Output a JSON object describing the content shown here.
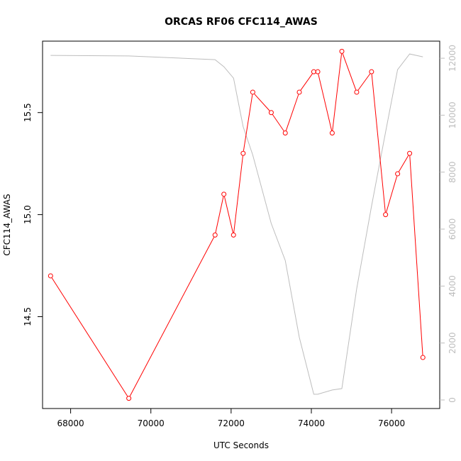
{
  "chart_data": {
    "type": "line",
    "title": "ORCAS RF06 CFC114_AWAS",
    "xlabel": "UTC Seconds",
    "ylabel": "CFC114_AWAS",
    "xlim": [
      67300,
      77200
    ],
    "ylim": [
      14.05,
      15.85
    ],
    "y2lim": [
      -300,
      12600
    ],
    "x_ticks": [
      68000,
      70000,
      72000,
      74000,
      76000
    ],
    "y_ticks": [
      14.5,
      15.0,
      15.5
    ],
    "y2_ticks": [
      0,
      2000,
      4000,
      6000,
      8000,
      10000,
      12000
    ],
    "grid": false,
    "legend": "none",
    "series": [
      {
        "axis": "left",
        "color": "#ff0000",
        "marker": "open-circle",
        "x": [
          67500,
          69450,
          71600,
          71820,
          72060,
          72300,
          72540,
          73000,
          73350,
          73700,
          74060,
          74160,
          74520,
          74760,
          75130,
          75500,
          75850,
          76150,
          76450,
          76780
        ],
        "y": [
          14.7,
          14.1,
          14.9,
          15.1,
          14.9,
          15.3,
          15.6,
          15.5,
          15.4,
          15.6,
          15.7,
          15.7,
          15.4,
          15.8,
          15.6,
          15.7,
          15.0,
          15.2,
          15.3,
          14.3
        ]
      },
      {
        "axis": "right",
        "color": "#bdbdbd",
        "marker": "none",
        "x": [
          67500,
          69450,
          71600,
          71820,
          72060,
          72300,
          72540,
          73000,
          73350,
          73700,
          74060,
          74160,
          74520,
          74760,
          75130,
          75500,
          75850,
          76150,
          76450,
          76780
        ],
        "y": [
          12100,
          12080,
          11950,
          11700,
          11300,
          9600,
          8600,
          6200,
          4900,
          2200,
          200,
          200,
          350,
          400,
          3900,
          6800,
          9400,
          11600,
          12150,
          12050
        ]
      }
    ]
  }
}
